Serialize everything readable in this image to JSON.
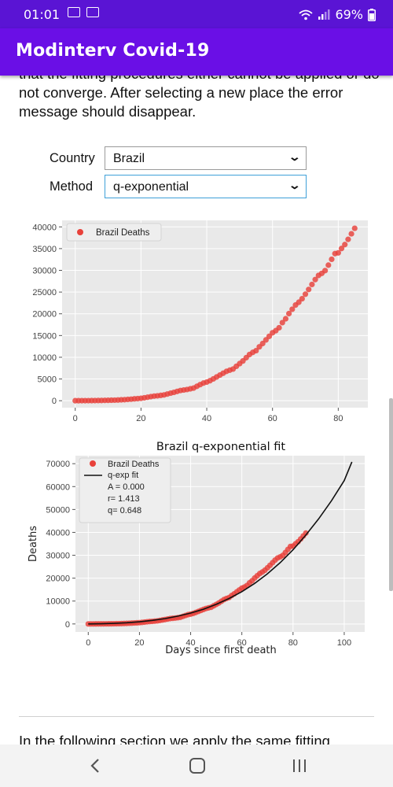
{
  "status_bar": {
    "time": "01:01",
    "battery": "69%"
  },
  "app": {
    "title": "Modinterv Covid-19"
  },
  "intro_text": "that the fitting procedures either cannot be applied or do not converge. After selecting a new place the error message should disappear.",
  "form": {
    "country_label": "Country",
    "country_value": "Brazil",
    "method_label": "Method",
    "method_value": "q-exponential"
  },
  "chart_data": [
    {
      "type": "scatter",
      "title": "",
      "xlabel": "",
      "ylabel": "",
      "xlim": [
        -4,
        89
      ],
      "ylim": [
        -1600,
        41500
      ],
      "xticks": [
        0,
        20,
        40,
        60,
        80
      ],
      "yticks": [
        0,
        5000,
        10000,
        15000,
        20000,
        25000,
        30000,
        35000,
        40000
      ],
      "grid": true,
      "legend_position": "top-left",
      "point_color": "#e8413a",
      "series": [
        {
          "name": "Brazil Deaths",
          "x": [
            0,
            1,
            2,
            3,
            4,
            5,
            6,
            7,
            8,
            9,
            10,
            11,
            12,
            13,
            14,
            15,
            16,
            17,
            18,
            19,
            20,
            21,
            22,
            23,
            24,
            25,
            26,
            27,
            28,
            29,
            30,
            31,
            32,
            33,
            34,
            35,
            36,
            37,
            38,
            39,
            40,
            41,
            42,
            43,
            44,
            45,
            46,
            47,
            48,
            49,
            50,
            51,
            52,
            53,
            54,
            55,
            56,
            57,
            58,
            59,
            60,
            61,
            62,
            63,
            64,
            65,
            66,
            67,
            68,
            69,
            70,
            71,
            72,
            73,
            74,
            75,
            76,
            77,
            78,
            79,
            80,
            81,
            82,
            83,
            84,
            85
          ],
          "y": [
            1,
            4,
            7,
            11,
            18,
            25,
            34,
            46,
            57,
            77,
            92,
            114,
            136,
            159,
            207,
            240,
            299,
            359,
            431,
            486,
            553,
            667,
            800,
            941,
            1056,
            1124,
            1223,
            1328,
            1532,
            1736,
            1924,
            2141,
            2347,
            2462,
            2575,
            2741,
            2906,
            3313,
            3704,
            4057,
            4286,
            4603,
            5017,
            5466,
            5901,
            6329,
            6750,
            7025,
            7288,
            7921,
            8536,
            9146,
            9897,
            10627,
            11123,
            11519,
            12400,
            13158,
            13993,
            14817,
            15633,
            16118,
            16792,
            17971,
            18859,
            20047,
            21048,
            22013,
            22666,
            23473,
            24512,
            25598,
            26754,
            27878,
            28834,
            29314,
            29937,
            31199,
            32548,
            33846,
            34021,
            35026,
            35930,
            37134,
            38406,
            39680
          ]
        }
      ]
    },
    {
      "type": "scatter",
      "title": "Brazil q-exponential fit",
      "xlabel": "Days since first death",
      "ylabel": "Deaths",
      "xlim": [
        -5,
        108
      ],
      "ylim": [
        -3500,
        73500
      ],
      "xticks": [
        0,
        20,
        40,
        60,
        80,
        100
      ],
      "yticks": [
        0,
        10000,
        20000,
        30000,
        40000,
        50000,
        60000,
        70000
      ],
      "grid": true,
      "legend_position": "top-left",
      "point_color": "#e8413a",
      "fit_color": "#111111",
      "fit_params": {
        "A": "A = 0.000",
        "r": "r= 1.413",
        "q": "q= 0.648"
      },
      "series": [
        {
          "name": "Brazil Deaths",
          "kind": "points"
        },
        {
          "name": "q-exp fit",
          "kind": "line",
          "x": [
            0,
            5,
            10,
            15,
            20,
            25,
            30,
            35,
            40,
            45,
            50,
            55,
            60,
            65,
            70,
            75,
            80,
            85,
            90,
            95,
            100,
            103
          ],
          "y": [
            0,
            60,
            230,
            520,
            950,
            1550,
            2350,
            3400,
            4750,
            6450,
            8550,
            11100,
            14100,
            17700,
            21900,
            26800,
            32400,
            38800,
            45900,
            53800,
            62600,
            70800
          ]
        }
      ]
    }
  ],
  "bottom_text": "In the following section we apply the same fitting",
  "nav": {
    "back": "back",
    "home": "home",
    "recents": "recents"
  }
}
